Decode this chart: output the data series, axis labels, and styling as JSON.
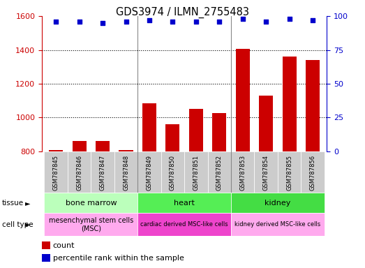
{
  "title": "GDS3974 / ILMN_2755483",
  "samples": [
    "GSM787845",
    "GSM787846",
    "GSM787847",
    "GSM787848",
    "GSM787849",
    "GSM787850",
    "GSM787851",
    "GSM787852",
    "GSM787853",
    "GSM787854",
    "GSM787855",
    "GSM787856"
  ],
  "counts": [
    810,
    860,
    862,
    808,
    1085,
    960,
    1050,
    1025,
    1405,
    1130,
    1360,
    1340
  ],
  "percentile_ranks": [
    96,
    96,
    95,
    96,
    97,
    96,
    96,
    96,
    98,
    96,
    98,
    97
  ],
  "ylim_left": [
    800,
    1600
  ],
  "ylim_right": [
    0,
    100
  ],
  "yticks_left": [
    800,
    1000,
    1200,
    1400,
    1600
  ],
  "yticks_right": [
    0,
    25,
    50,
    75,
    100
  ],
  "bar_color": "#cc0000",
  "dot_color": "#0000cc",
  "tissue_groups": [
    {
      "label": "bone marrow",
      "start": 0,
      "end": 4,
      "color": "#bbffbb"
    },
    {
      "label": "heart",
      "start": 4,
      "end": 8,
      "color": "#55ee55"
    },
    {
      "label": "kidney",
      "start": 8,
      "end": 12,
      "color": "#44dd44"
    }
  ],
  "cell_type_groups": [
    {
      "label": "mesenchymal stem cells\n(MSC)",
      "start": 0,
      "end": 4,
      "color": "#ffaaee"
    },
    {
      "label": "cardiac derived MSC-like cells",
      "start": 4,
      "end": 8,
      "color": "#ee44cc"
    },
    {
      "label": "kidney derived MSC-like cells",
      "start": 8,
      "end": 12,
      "color": "#ffaaee"
    }
  ],
  "sample_box_color": "#cccccc",
  "legend_count_color": "#cc0000",
  "legend_pct_color": "#0000cc",
  "bar_width": 0.6,
  "group_sep_color": "#888888"
}
